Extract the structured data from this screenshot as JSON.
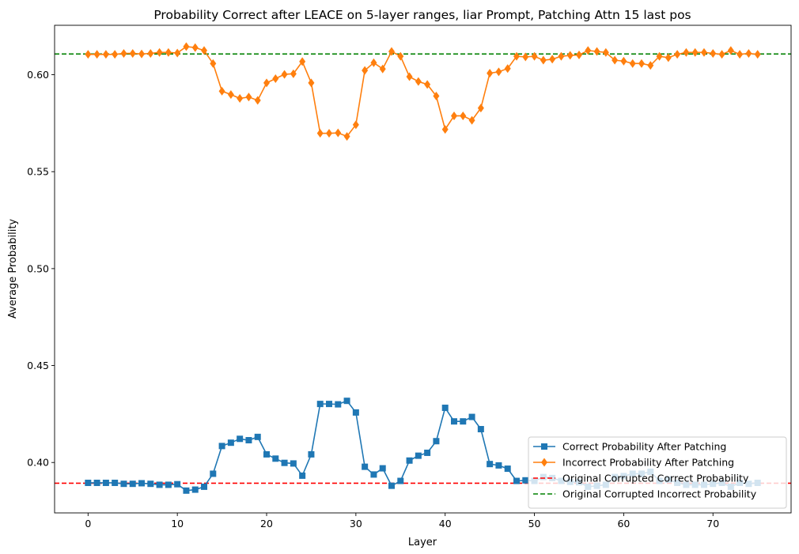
{
  "chart_data": {
    "type": "line",
    "title": "Probability Correct after LEACE on 5-layer ranges, liar Prompt, Patching Attn 15 last pos",
    "xlabel": "Layer",
    "ylabel": "Average Probability",
    "xlim": [
      -3.75,
      78.75
    ],
    "ylim": [
      0.374,
      0.6255
    ],
    "xticks": [
      0,
      10,
      20,
      30,
      40,
      50,
      60,
      70
    ],
    "yticks": [
      0.4,
      0.45,
      0.5,
      0.55,
      0.6
    ],
    "ytick_labels": [
      "0.40",
      "0.45",
      "0.50",
      "0.55",
      "0.60"
    ],
    "grid": false,
    "legend_position": "lower-right",
    "x": [
      0,
      1,
      2,
      3,
      4,
      5,
      6,
      7,
      8,
      9,
      10,
      11,
      12,
      13,
      14,
      15,
      16,
      17,
      18,
      19,
      20,
      21,
      22,
      23,
      24,
      25,
      26,
      27,
      28,
      29,
      30,
      31,
      32,
      33,
      34,
      35,
      36,
      37,
      38,
      39,
      40,
      41,
      42,
      43,
      44,
      45,
      46,
      47,
      48,
      49,
      50,
      51,
      52,
      53,
      54,
      55,
      56,
      57,
      58,
      59,
      60,
      61,
      62,
      63,
      64,
      65,
      66,
      67,
      68,
      69,
      70,
      71,
      72,
      73,
      74,
      75
    ],
    "series": [
      {
        "name": "Correct Probability After Patching",
        "color": "#1f77b4",
        "marker": "square",
        "values": [
          0.3895,
          0.3895,
          0.3895,
          0.3895,
          0.389,
          0.389,
          0.3893,
          0.389,
          0.3885,
          0.3885,
          0.3888,
          0.3855,
          0.386,
          0.3875,
          0.3942,
          0.4085,
          0.4102,
          0.4122,
          0.4115,
          0.4132,
          0.4042,
          0.402,
          0.3998,
          0.3995,
          0.3932,
          0.4042,
          0.4302,
          0.4302,
          0.43,
          0.4318,
          0.4258,
          0.3978,
          0.3938,
          0.397,
          0.388,
          0.3905,
          0.401,
          0.4035,
          0.405,
          0.411,
          0.4282,
          0.4212,
          0.4212,
          0.4235,
          0.4172,
          0.3992,
          0.3985,
          0.3968,
          0.3905,
          0.3908,
          0.3905,
          0.3925,
          0.392,
          0.3905,
          0.39,
          0.3898,
          0.3875,
          0.388,
          0.3885,
          0.3925,
          0.393,
          0.3942,
          0.3942,
          0.3952,
          0.3905,
          0.3912,
          0.3895,
          0.3885,
          0.3885,
          0.3885,
          0.389,
          0.3895,
          0.3875,
          0.3895,
          0.389,
          0.3895
        ]
      },
      {
        "name": "Incorrect Probability After Patching",
        "color": "#ff7f0e",
        "marker": "diamond",
        "values": [
          0.6105,
          0.6105,
          0.6105,
          0.6105,
          0.611,
          0.611,
          0.6107,
          0.611,
          0.6115,
          0.6115,
          0.6112,
          0.6145,
          0.614,
          0.6125,
          0.6058,
          0.5915,
          0.5898,
          0.5878,
          0.5885,
          0.5868,
          0.5958,
          0.598,
          0.6002,
          0.6005,
          0.6068,
          0.5958,
          0.5698,
          0.5698,
          0.57,
          0.5682,
          0.5742,
          0.6022,
          0.6062,
          0.603,
          0.612,
          0.6095,
          0.599,
          0.5965,
          0.595,
          0.589,
          0.5718,
          0.5788,
          0.5788,
          0.5765,
          0.5828,
          0.6008,
          0.6015,
          0.6032,
          0.6095,
          0.6092,
          0.6095,
          0.6075,
          0.608,
          0.6095,
          0.61,
          0.6102,
          0.6125,
          0.612,
          0.6115,
          0.6075,
          0.607,
          0.6058,
          0.6058,
          0.6048,
          0.6095,
          0.6088,
          0.6105,
          0.6115,
          0.6115,
          0.6115,
          0.611,
          0.6105,
          0.6125,
          0.6105,
          0.611,
          0.6105
        ]
      },
      {
        "name": "Original Corrupted Correct Probability",
        "color": "#ff0000",
        "style": "dashed",
        "value": 0.3893
      },
      {
        "name": "Original Corrupted Incorrect Probability",
        "color": "#008000",
        "style": "dashed",
        "value": 0.6107
      }
    ]
  }
}
